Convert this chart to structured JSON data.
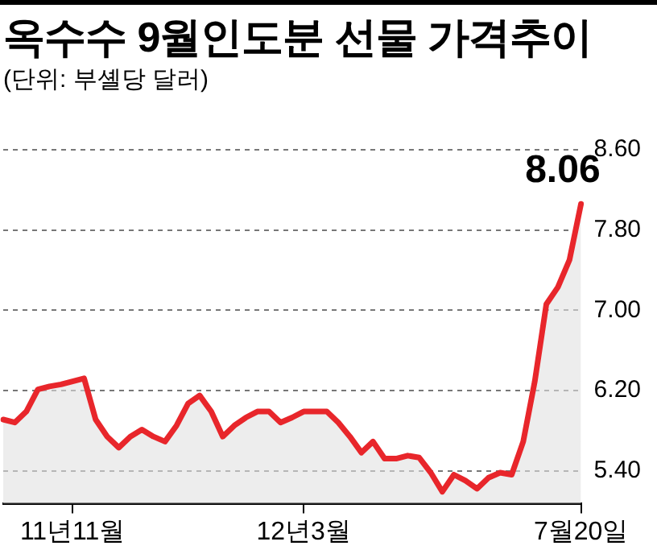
{
  "chart_data": {
    "type": "area",
    "title": "옥수수 9월인도분 선물 가격추이",
    "subtitle": "(단위: 부셸당 달러)",
    "categories": [
      null,
      null,
      null,
      null,
      null,
      null,
      "11년11월",
      null,
      null,
      null,
      null,
      null,
      null,
      null,
      null,
      null,
      null,
      null,
      null,
      null,
      null,
      null,
      null,
      null,
      null,
      null,
      "12년3월",
      null,
      null,
      null,
      null,
      null,
      null,
      null,
      null,
      null,
      null,
      null,
      null,
      null,
      null,
      null,
      null,
      null,
      null,
      null,
      null,
      null,
      null,
      null,
      "7월20일"
    ],
    "series": [
      {
        "color": "#e8262b",
        "values": [
          5.91,
          5.88,
          5.99,
          6.21,
          6.24,
          6.26,
          6.29,
          6.32,
          5.91,
          5.74,
          5.63,
          5.74,
          5.81,
          5.74,
          5.69,
          5.85,
          6.07,
          6.15,
          5.99,
          5.74,
          5.85,
          5.93,
          5.99,
          5.99,
          5.88,
          5.93,
          5.99,
          5.99,
          5.99,
          5.88,
          5.74,
          5.58,
          5.69,
          5.52,
          5.52,
          5.55,
          5.53,
          5.38,
          5.19,
          5.36,
          5.3,
          5.22,
          5.33,
          5.38,
          5.36,
          5.69,
          6.29,
          7.06,
          7.23,
          7.5,
          8.06
        ],
        "value_labels": [
          null,
          null,
          null,
          null,
          null,
          null,
          null,
          null,
          null,
          null,
          null,
          null,
          null,
          null,
          null,
          null,
          null,
          null,
          null,
          null,
          null,
          null,
          null,
          null,
          null,
          null,
          null,
          null,
          null,
          null,
          null,
          null,
          null,
          null,
          null,
          null,
          null,
          null,
          null,
          null,
          null,
          null,
          null,
          null,
          null,
          null,
          null,
          null,
          null,
          null,
          "8.06"
        ]
      }
    ],
    "ylim": [
      5.07,
      8.6
    ],
    "yticks": [
      {
        "value": 5.4,
        "label": "5.40"
      },
      {
        "value": 6.2,
        "label": "6.20"
      },
      {
        "value": 7,
        "label": "7.00"
      },
      {
        "value": 7.8,
        "label": "7.80"
      },
      {
        "value": 8.6,
        "label": "8.60"
      }
    ],
    "grid": "y",
    "legend": false,
    "marker": "none",
    "line_style": "solid"
  }
}
